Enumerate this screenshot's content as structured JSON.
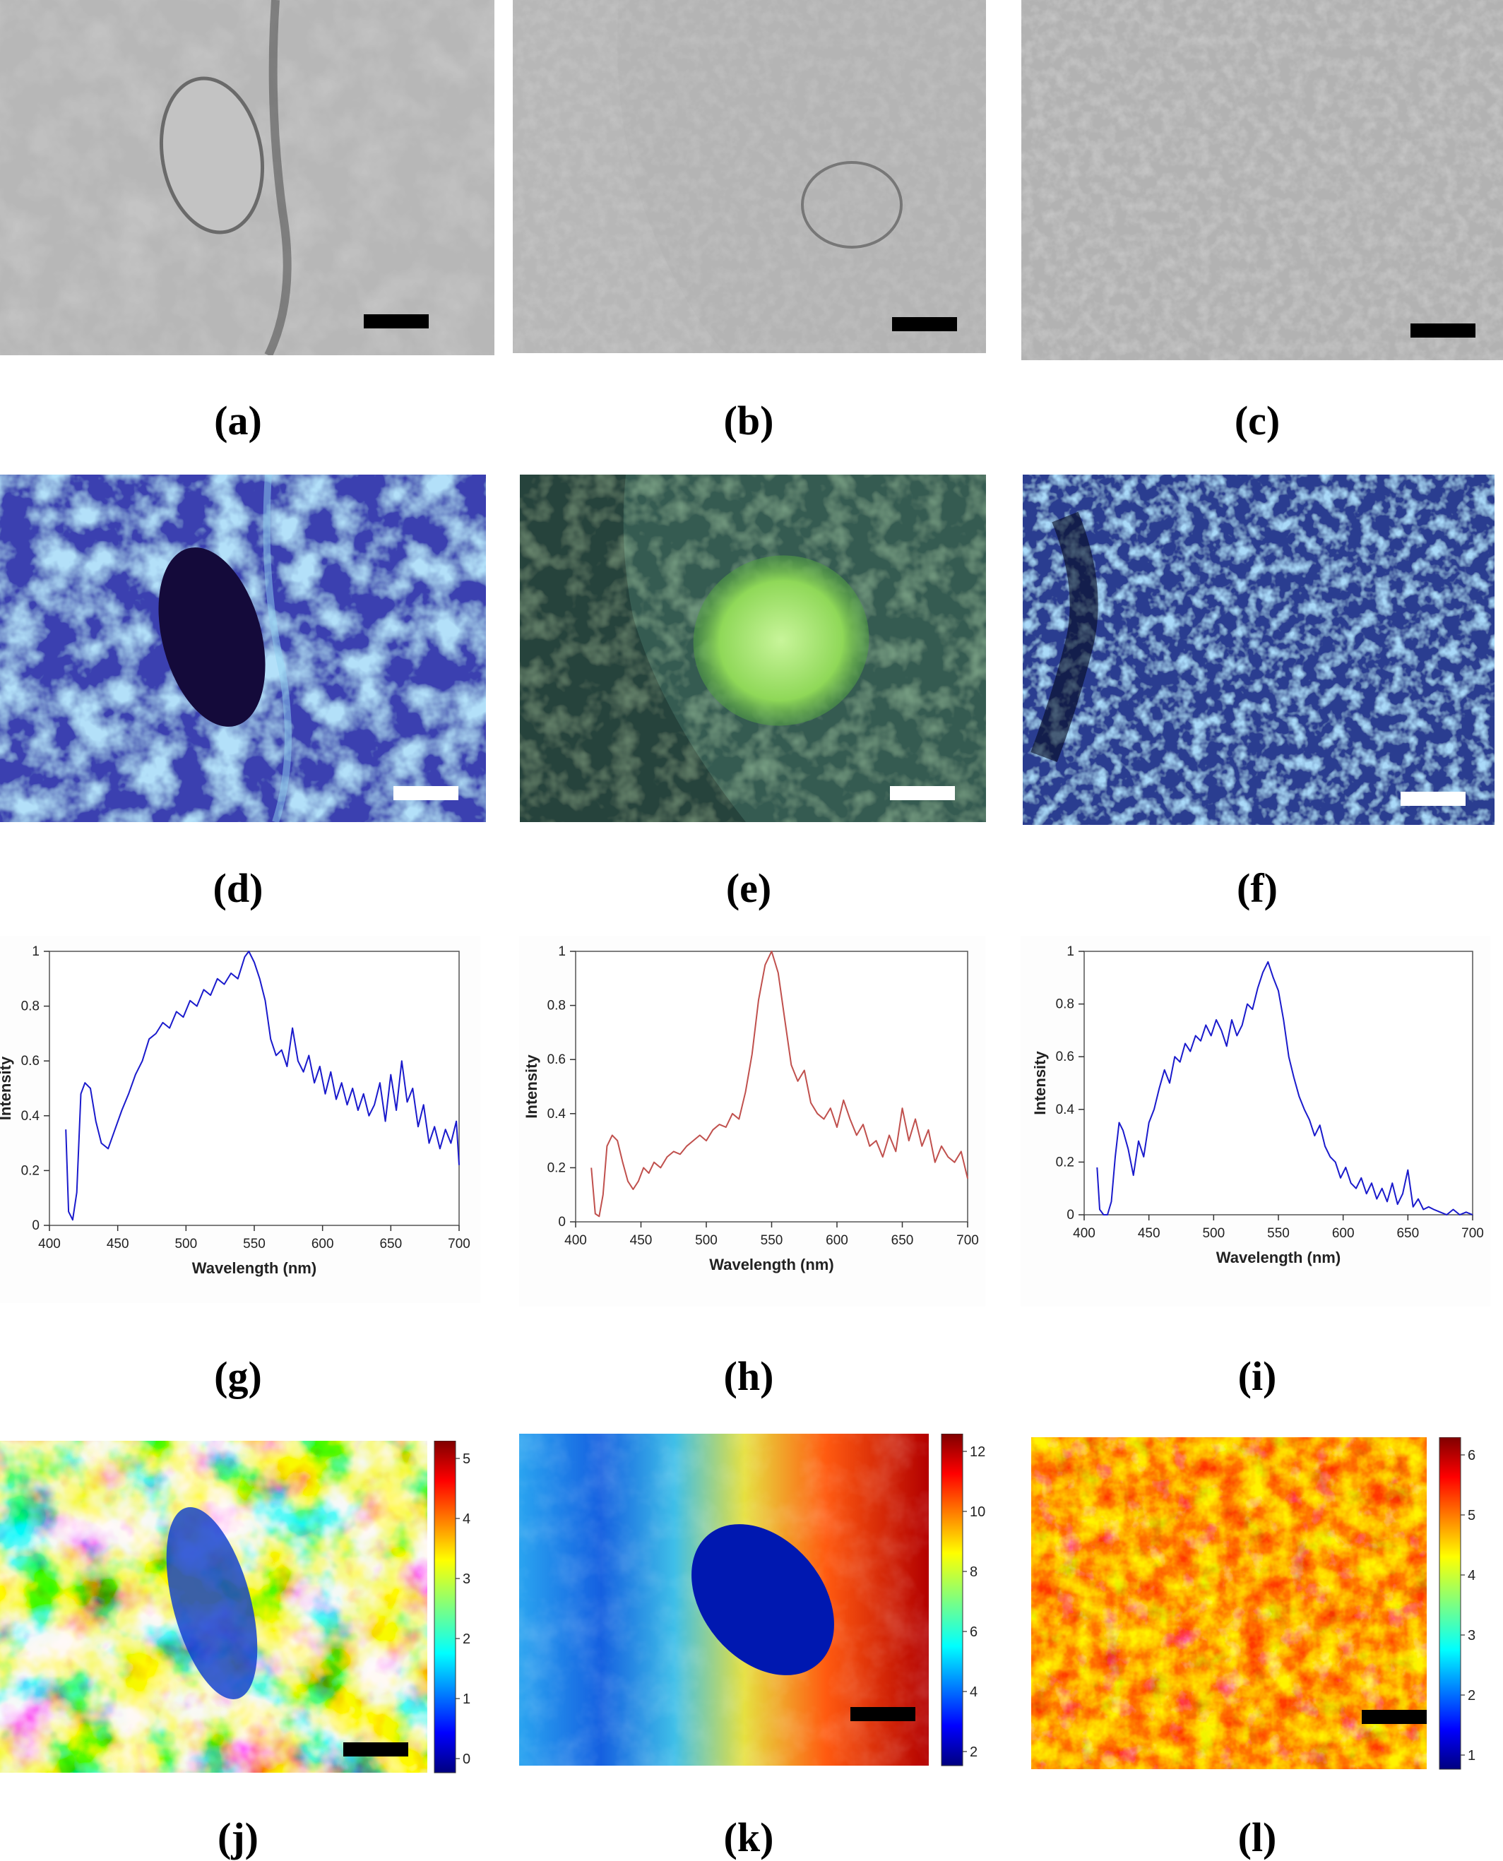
{
  "labels": {
    "a": "(a)",
    "b": "(b)",
    "c": "(c)",
    "d": "(d)",
    "e": "(e)",
    "f": "(f)",
    "g": "(g)",
    "h": "(h)",
    "i": "(i)",
    "j": "(j)",
    "k": "(k)",
    "l": "(l)"
  },
  "colors": {
    "brightfield": "#a9a9a9",
    "fluorescence_blue": "#3a3fb0",
    "fluorescence_green": "#9ae66a",
    "spectrum_blue": "#1a1acc",
    "spectrum_red": "#c0504d"
  },
  "colorbars": {
    "j": [
      "5",
      "4",
      "3",
      "2",
      "1",
      "0"
    ],
    "k": [
      "12",
      "10",
      "8",
      "6",
      "4",
      "2"
    ],
    "l": [
      "6",
      "5",
      "4",
      "3",
      "2",
      "1"
    ]
  },
  "chart_data": [
    {
      "id": "g",
      "type": "line",
      "title": "",
      "xlabel": "Wavelength (nm)",
      "ylabel": "Intensity",
      "xlim": [
        400,
        700
      ],
      "ylim": [
        0,
        1
      ],
      "xticks": [
        "400",
        "450",
        "500",
        "550",
        "600",
        "650",
        "700"
      ],
      "yticks": [
        "0",
        "0.2",
        "0.4",
        "0.6",
        "0.8",
        "1"
      ],
      "color": "#1a1acc",
      "series": [
        {
          "x": [
            412,
            414,
            417,
            420,
            423,
            426,
            430,
            434,
            438,
            443,
            448,
            453,
            458,
            463,
            468,
            473,
            478,
            483,
            488,
            493,
            498,
            503,
            508,
            513,
            518,
            523,
            528,
            533,
            538,
            543,
            546,
            550,
            554,
            558,
            562,
            566,
            570,
            574,
            578,
            582,
            586,
            590,
            594,
            598,
            602,
            606,
            610,
            614,
            618,
            622,
            626,
            630,
            634,
            638,
            642,
            646,
            650,
            654,
            658,
            662,
            666,
            670,
            674,
            678,
            682,
            686,
            690,
            694,
            698,
            700
          ],
          "y": [
            0.35,
            0.05,
            0.02,
            0.12,
            0.48,
            0.52,
            0.5,
            0.38,
            0.3,
            0.28,
            0.35,
            0.42,
            0.48,
            0.55,
            0.6,
            0.68,
            0.7,
            0.74,
            0.72,
            0.78,
            0.76,
            0.82,
            0.8,
            0.86,
            0.84,
            0.9,
            0.88,
            0.92,
            0.9,
            0.98,
            1.0,
            0.96,
            0.9,
            0.82,
            0.68,
            0.62,
            0.64,
            0.58,
            0.72,
            0.6,
            0.56,
            0.62,
            0.52,
            0.58,
            0.48,
            0.56,
            0.46,
            0.52,
            0.44,
            0.5,
            0.42,
            0.48,
            0.4,
            0.44,
            0.52,
            0.38,
            0.55,
            0.42,
            0.6,
            0.45,
            0.5,
            0.36,
            0.44,
            0.3,
            0.36,
            0.28,
            0.35,
            0.3,
            0.38,
            0.22
          ]
        }
      ]
    },
    {
      "id": "h",
      "type": "line",
      "title": "",
      "xlabel": "Wavelength (nm)",
      "ylabel": "Intensity",
      "xlim": [
        400,
        700
      ],
      "ylim": [
        0,
        1
      ],
      "xticks": [
        "400",
        "450",
        "500",
        "550",
        "600",
        "650",
        "700"
      ],
      "yticks": [
        "0",
        "0.2",
        "0.4",
        "0.6",
        "0.8",
        "1"
      ],
      "color": "#c0504d",
      "series": [
        {
          "x": [
            412,
            415,
            418,
            421,
            424,
            428,
            432,
            436,
            440,
            444,
            448,
            452,
            456,
            460,
            465,
            470,
            475,
            480,
            485,
            490,
            495,
            500,
            505,
            510,
            515,
            520,
            525,
            530,
            535,
            540,
            545,
            550,
            555,
            560,
            565,
            570,
            575,
            580,
            585,
            590,
            595,
            600,
            605,
            610,
            615,
            620,
            625,
            630,
            635,
            640,
            645,
            650,
            655,
            660,
            665,
            670,
            675,
            680,
            685,
            690,
            695,
            700
          ],
          "y": [
            0.2,
            0.03,
            0.02,
            0.1,
            0.28,
            0.32,
            0.3,
            0.22,
            0.15,
            0.12,
            0.15,
            0.2,
            0.18,
            0.22,
            0.2,
            0.24,
            0.26,
            0.25,
            0.28,
            0.3,
            0.32,
            0.3,
            0.34,
            0.36,
            0.35,
            0.4,
            0.38,
            0.48,
            0.62,
            0.82,
            0.95,
            1.0,
            0.92,
            0.75,
            0.58,
            0.52,
            0.56,
            0.44,
            0.4,
            0.38,
            0.42,
            0.35,
            0.45,
            0.38,
            0.32,
            0.36,
            0.28,
            0.3,
            0.24,
            0.32,
            0.26,
            0.42,
            0.3,
            0.38,
            0.28,
            0.34,
            0.22,
            0.28,
            0.24,
            0.22,
            0.26,
            0.16
          ]
        }
      ]
    },
    {
      "id": "i",
      "type": "line",
      "title": "",
      "xlabel": "Wavelength (nm)",
      "ylabel": "Intensity",
      "xlim": [
        400,
        700
      ],
      "ylim": [
        0,
        1
      ],
      "xticks": [
        "400",
        "450",
        "500",
        "550",
        "600",
        "650",
        "700"
      ],
      "yticks": [
        "0",
        "0.2",
        "0.4",
        "0.6",
        "0.8",
        "1"
      ],
      "color": "#1a1acc",
      "series": [
        {
          "x": [
            410,
            412,
            415,
            418,
            421,
            424,
            427,
            430,
            434,
            438,
            442,
            446,
            450,
            454,
            458,
            462,
            466,
            470,
            474,
            478,
            482,
            486,
            490,
            494,
            498,
            502,
            506,
            510,
            514,
            518,
            522,
            526,
            530,
            534,
            538,
            542,
            546,
            550,
            554,
            558,
            562,
            566,
            570,
            574,
            578,
            582,
            586,
            590,
            594,
            598,
            602,
            606,
            610,
            614,
            618,
            622,
            626,
            630,
            634,
            638,
            642,
            646,
            650,
            654,
            658,
            662,
            666,
            670,
            675,
            680,
            685,
            690,
            695,
            700
          ],
          "y": [
            0.18,
            0.02,
            0.0,
            0.0,
            0.05,
            0.22,
            0.35,
            0.32,
            0.25,
            0.15,
            0.28,
            0.22,
            0.35,
            0.4,
            0.48,
            0.55,
            0.5,
            0.6,
            0.58,
            0.65,
            0.62,
            0.68,
            0.66,
            0.72,
            0.68,
            0.74,
            0.7,
            0.64,
            0.74,
            0.68,
            0.72,
            0.8,
            0.78,
            0.86,
            0.92,
            0.96,
            0.9,
            0.85,
            0.74,
            0.6,
            0.52,
            0.45,
            0.4,
            0.36,
            0.3,
            0.34,
            0.26,
            0.22,
            0.2,
            0.14,
            0.18,
            0.12,
            0.1,
            0.14,
            0.08,
            0.12,
            0.06,
            0.1,
            0.05,
            0.12,
            0.04,
            0.08,
            0.17,
            0.03,
            0.06,
            0.02,
            0.03,
            0.02,
            0.01,
            0.0,
            0.02,
            0.0,
            0.01,
            0.0
          ]
        }
      ]
    }
  ]
}
